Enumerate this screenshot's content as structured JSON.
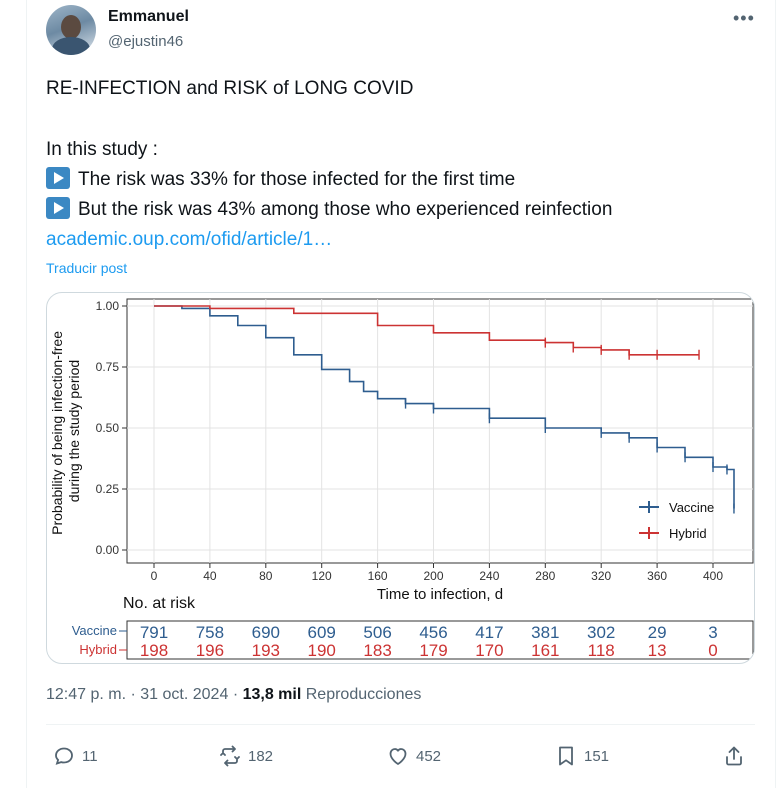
{
  "author": {
    "display_name": "Emmanuel",
    "handle": "@ejustin46",
    "avatar_icon": "user-avatar"
  },
  "more_icon": "more-icon",
  "post": {
    "line1": "RE-INFECTION and RISK of LONG COVID",
    "line2": "In this study :",
    "bullet1": "The risk was 33% for those infected for the first time",
    "bullet2": "But the risk was 43% among those who experienced reinfection",
    "link": "academic.oup.com/ofid/article/1…",
    "translate": "Traducir post"
  },
  "meta": {
    "time": "12:47 p. m.",
    "sep1": "·",
    "date": "31 oct. 2024",
    "sep2": "·",
    "views_count": "13,8 mil",
    "views_label": "Reproducciones"
  },
  "actions": {
    "replies": "11",
    "reposts": "182",
    "likes": "452",
    "bookmarks": "151"
  },
  "colors": {
    "vaccine": "#2e5d8f",
    "hybrid": "#cc3333",
    "link": "#1d9bf0"
  },
  "chart_data": {
    "type": "line",
    "title": "",
    "xlabel": "Time to infection, d",
    "ylabel": "Probability of being infection-free during the study period",
    "xlim": [
      -5,
      415
    ],
    "ylim": [
      0,
      1.02
    ],
    "x_ticks": [
      0,
      40,
      80,
      120,
      160,
      200,
      240,
      280,
      320,
      360,
      400
    ],
    "y_ticks": [
      "0.00",
      "0.25",
      "0.50",
      "0.75",
      "1.00"
    ],
    "grid": true,
    "legend": "bottom-right",
    "series": [
      {
        "name": "Vaccine",
        "x": [
          0,
          20,
          40,
          60,
          80,
          100,
          120,
          140,
          150,
          160,
          180,
          200,
          240,
          280,
          320,
          340,
          360,
          380,
          400,
          410,
          415
        ],
        "y": [
          1.0,
          0.99,
          0.96,
          0.92,
          0.87,
          0.8,
          0.74,
          0.69,
          0.65,
          0.62,
          0.6,
          0.58,
          0.54,
          0.5,
          0.48,
          0.46,
          0.42,
          0.38,
          0.34,
          0.33,
          0.17
        ]
      },
      {
        "name": "Hybrid",
        "x": [
          0,
          40,
          100,
          160,
          200,
          240,
          280,
          300,
          320,
          340,
          360,
          390
        ],
        "y": [
          1.0,
          0.99,
          0.97,
          0.92,
          0.89,
          0.86,
          0.85,
          0.83,
          0.82,
          0.8,
          0.8,
          0.8
        ]
      }
    ],
    "risk_table": {
      "title": "No. at risk",
      "rows": [
        {
          "name": "Vaccine",
          "values": [
            "791",
            "758",
            "690",
            "609",
            "506",
            "456",
            "417",
            "381",
            "302",
            "29",
            "3"
          ]
        },
        {
          "name": "Hybrid",
          "values": [
            "198",
            "196",
            "193",
            "190",
            "183",
            "179",
            "170",
            "161",
            "118",
            "13",
            "0"
          ]
        }
      ]
    }
  }
}
